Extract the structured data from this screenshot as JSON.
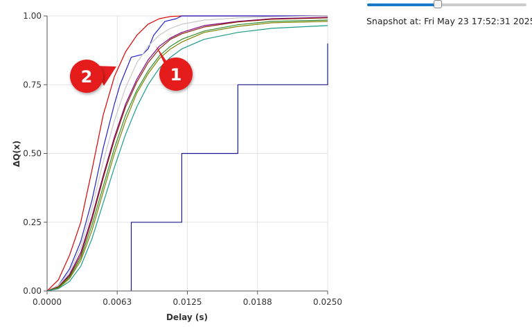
{
  "slider": {
    "value": 0.44
  },
  "snapshot": {
    "label": "Snapshot at: Fri May 23 17:52:31 2025"
  },
  "callouts": [
    {
      "text": "1",
      "color": "#e41e1e"
    },
    {
      "text": "2",
      "color": "#e41e1e"
    }
  ],
  "chart_data": {
    "type": "line",
    "xlabel": "Delay (s)",
    "ylabel": "ΔQ(x)",
    "xlim": [
      0,
      0.025
    ],
    "ylim": [
      0,
      1
    ],
    "x_ticks": [
      0,
      0.00625,
      0.0125,
      0.01875,
      0.025
    ],
    "x_tick_labels": [
      "0.0000",
      "0.0063",
      "0.0125",
      "0.0188",
      "0.0250"
    ],
    "y_ticks": [
      0,
      0.25,
      0.5,
      0.75,
      1
    ],
    "y_tick_labels": [
      "0.00",
      "0.25",
      "0.50",
      "0.75",
      "1.00"
    ],
    "grid": true,
    "series": [
      {
        "color": "#dd0000",
        "step": false,
        "points": [
          [
            0,
            0
          ],
          [
            0.001,
            0.04
          ],
          [
            0.002,
            0.13
          ],
          [
            0.003,
            0.25
          ],
          [
            0.004,
            0.44
          ],
          [
            0.005,
            0.64
          ],
          [
            0.006,
            0.78
          ],
          [
            0.007,
            0.87
          ],
          [
            0.008,
            0.93
          ],
          [
            0.009,
            0.97
          ],
          [
            0.01,
            0.99
          ],
          [
            0.011,
            0.998
          ],
          [
            0.012,
            1.0
          ],
          [
            0.025,
            1.0
          ]
        ]
      },
      {
        "color": "#1f1fcc",
        "step": false,
        "points": [
          [
            0,
            0
          ],
          [
            0.001,
            0.02
          ],
          [
            0.002,
            0.08
          ],
          [
            0.003,
            0.18
          ],
          [
            0.004,
            0.33
          ],
          [
            0.005,
            0.52
          ],
          [
            0.006,
            0.68
          ],
          [
            0.0065,
            0.75
          ],
          [
            0.007,
            0.8
          ],
          [
            0.0075,
            0.85
          ],
          [
            0.0085,
            0.86
          ],
          [
            0.009,
            0.88
          ],
          [
            0.0095,
            0.93
          ],
          [
            0.0105,
            0.98
          ],
          [
            0.0115,
            0.99
          ],
          [
            0.012,
            1.0
          ],
          [
            0.025,
            1.0
          ]
        ]
      },
      {
        "color": "#c8c8c8",
        "step": false,
        "points": [
          [
            0,
            0
          ],
          [
            0.001,
            0.02
          ],
          [
            0.002,
            0.07
          ],
          [
            0.003,
            0.16
          ],
          [
            0.004,
            0.3
          ],
          [
            0.005,
            0.47
          ],
          [
            0.006,
            0.62
          ],
          [
            0.007,
            0.74
          ],
          [
            0.008,
            0.83
          ],
          [
            0.009,
            0.89
          ],
          [
            0.01,
            0.93
          ],
          [
            0.011,
            0.955
          ],
          [
            0.012,
            0.97
          ],
          [
            0.014,
            0.985
          ],
          [
            0.017,
            0.993
          ],
          [
            0.02,
            0.997
          ],
          [
            0.025,
            1.0
          ]
        ]
      },
      {
        "color": "#800080",
        "step": false,
        "points": [
          [
            0,
            0
          ],
          [
            0.001,
            0.015
          ],
          [
            0.002,
            0.06
          ],
          [
            0.003,
            0.14
          ],
          [
            0.004,
            0.27
          ],
          [
            0.005,
            0.42
          ],
          [
            0.006,
            0.56
          ],
          [
            0.007,
            0.68
          ],
          [
            0.008,
            0.77
          ],
          [
            0.009,
            0.84
          ],
          [
            0.01,
            0.89
          ],
          [
            0.011,
            0.92
          ],
          [
            0.012,
            0.94
          ],
          [
            0.014,
            0.965
          ],
          [
            0.017,
            0.98
          ],
          [
            0.02,
            0.99
          ],
          [
            0.025,
            0.995
          ]
        ]
      },
      {
        "color": "#8b2500",
        "step": false,
        "points": [
          [
            0,
            0
          ],
          [
            0.001,
            0.015
          ],
          [
            0.002,
            0.055
          ],
          [
            0.003,
            0.13
          ],
          [
            0.004,
            0.26
          ],
          [
            0.005,
            0.41
          ],
          [
            0.006,
            0.55
          ],
          [
            0.007,
            0.67
          ],
          [
            0.008,
            0.76
          ],
          [
            0.009,
            0.83
          ],
          [
            0.01,
            0.88
          ],
          [
            0.011,
            0.915
          ],
          [
            0.012,
            0.935
          ],
          [
            0.014,
            0.96
          ],
          [
            0.017,
            0.978
          ],
          [
            0.02,
            0.988
          ],
          [
            0.025,
            0.993
          ]
        ]
      },
      {
        "color": "#2e8b2e",
        "step": false,
        "points": [
          [
            0,
            0
          ],
          [
            0.001,
            0.012
          ],
          [
            0.002,
            0.05
          ],
          [
            0.003,
            0.12
          ],
          [
            0.004,
            0.24
          ],
          [
            0.005,
            0.38
          ],
          [
            0.006,
            0.52
          ],
          [
            0.007,
            0.64
          ],
          [
            0.008,
            0.73
          ],
          [
            0.009,
            0.8
          ],
          [
            0.01,
            0.855
          ],
          [
            0.011,
            0.89
          ],
          [
            0.012,
            0.915
          ],
          [
            0.014,
            0.945
          ],
          [
            0.017,
            0.968
          ],
          [
            0.02,
            0.98
          ],
          [
            0.025,
            0.985
          ]
        ]
      },
      {
        "color": "#808000",
        "step": false,
        "points": [
          [
            0,
            0
          ],
          [
            0.001,
            0.01
          ],
          [
            0.002,
            0.045
          ],
          [
            0.003,
            0.11
          ],
          [
            0.004,
            0.22
          ],
          [
            0.005,
            0.36
          ],
          [
            0.006,
            0.5
          ],
          [
            0.007,
            0.62
          ],
          [
            0.008,
            0.72
          ],
          [
            0.009,
            0.79
          ],
          [
            0.01,
            0.845
          ],
          [
            0.011,
            0.88
          ],
          [
            0.012,
            0.905
          ],
          [
            0.014,
            0.94
          ],
          [
            0.017,
            0.962
          ],
          [
            0.02,
            0.975
          ],
          [
            0.025,
            0.98
          ]
        ]
      },
      {
        "color": "#1a9a8a",
        "step": false,
        "points": [
          [
            0,
            0
          ],
          [
            0.001,
            0.008
          ],
          [
            0.002,
            0.035
          ],
          [
            0.003,
            0.09
          ],
          [
            0.004,
            0.19
          ],
          [
            0.005,
            0.32
          ],
          [
            0.006,
            0.45
          ],
          [
            0.007,
            0.57
          ],
          [
            0.008,
            0.67
          ],
          [
            0.009,
            0.75
          ],
          [
            0.01,
            0.81
          ],
          [
            0.011,
            0.85
          ],
          [
            0.012,
            0.88
          ],
          [
            0.014,
            0.915
          ],
          [
            0.017,
            0.94
          ],
          [
            0.02,
            0.955
          ],
          [
            0.025,
            0.965
          ]
        ]
      },
      {
        "color": "#1a1a8c",
        "step": true,
        "points": [
          [
            0.0075,
            0
          ],
          [
            0.0075,
            0.25
          ],
          [
            0.012,
            0.25
          ],
          [
            0.012,
            0.5
          ],
          [
            0.017,
            0.5
          ],
          [
            0.017,
            0.75
          ],
          [
            0.025,
            0.75
          ],
          [
            0.025,
            0.9
          ]
        ]
      }
    ]
  }
}
